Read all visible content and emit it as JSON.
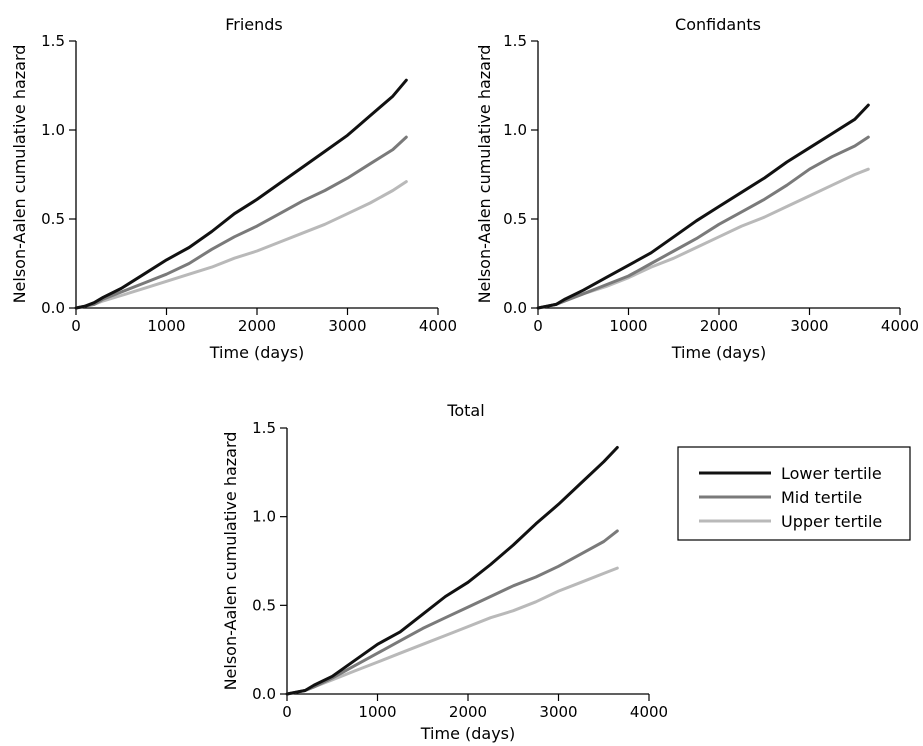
{
  "chart_data": [
    {
      "type": "line",
      "title": "Friends",
      "xlabel": "Time (days)",
      "ylabel": "Nelson-Aalen cumulative hazard",
      "xlim": [
        0,
        4000
      ],
      "ylim": [
        0,
        1.5
      ],
      "xticks": [
        "0",
        "1000",
        "2000",
        "3000",
        "4000"
      ],
      "yticks": [
        "0.0",
        "0.5",
        "1.0",
        "1.5"
      ],
      "series": [
        {
          "name": "Lower tertile",
          "color": "#111111",
          "x": [
            0,
            100,
            200,
            300,
            500,
            750,
            1000,
            1250,
            1500,
            1750,
            2000,
            2250,
            2500,
            2750,
            3000,
            3250,
            3500,
            3650
          ],
          "y": [
            0,
            0.01,
            0.03,
            0.06,
            0.11,
            0.19,
            0.27,
            0.34,
            0.43,
            0.53,
            0.61,
            0.7,
            0.79,
            0.88,
            0.97,
            1.08,
            1.19,
            1.28
          ]
        },
        {
          "name": "Mid tertile",
          "color": "#7a7a7a",
          "x": [
            0,
            100,
            200,
            300,
            500,
            750,
            1000,
            1250,
            1500,
            1750,
            2000,
            2250,
            2500,
            2750,
            3000,
            3250,
            3500,
            3650
          ],
          "y": [
            0,
            0.01,
            0.02,
            0.05,
            0.09,
            0.14,
            0.19,
            0.25,
            0.33,
            0.4,
            0.46,
            0.53,
            0.6,
            0.66,
            0.73,
            0.81,
            0.89,
            0.96
          ]
        },
        {
          "name": "Upper tertile",
          "color": "#b9b9b9",
          "x": [
            0,
            100,
            200,
            300,
            500,
            750,
            1000,
            1250,
            1500,
            1750,
            2000,
            2250,
            2500,
            2750,
            3000,
            3250,
            3500,
            3650
          ],
          "y": [
            0,
            0.01,
            0.02,
            0.04,
            0.07,
            0.11,
            0.15,
            0.19,
            0.23,
            0.28,
            0.32,
            0.37,
            0.42,
            0.47,
            0.53,
            0.59,
            0.66,
            0.71
          ]
        }
      ]
    },
    {
      "type": "line",
      "title": "Confidants",
      "xlabel": "Time (days)",
      "ylabel": "Nelson-Aalen cumulative hazard",
      "xlim": [
        0,
        4000
      ],
      "ylim": [
        0,
        1.5
      ],
      "xticks": [
        "0",
        "1000",
        "2000",
        "3000",
        "4000"
      ],
      "yticks": [
        "0.0",
        "0.5",
        "1.0",
        "1.5"
      ],
      "series": [
        {
          "name": "Lower tertile",
          "color": "#111111",
          "x": [
            0,
            100,
            200,
            300,
            500,
            750,
            1000,
            1250,
            1500,
            1750,
            2000,
            2250,
            2500,
            2750,
            3000,
            3250,
            3500,
            3650
          ],
          "y": [
            0,
            0.01,
            0.02,
            0.05,
            0.1,
            0.17,
            0.24,
            0.31,
            0.4,
            0.49,
            0.57,
            0.65,
            0.73,
            0.82,
            0.9,
            0.98,
            1.06,
            1.14
          ]
        },
        {
          "name": "Mid tertile",
          "color": "#7a7a7a",
          "x": [
            0,
            100,
            200,
            300,
            500,
            750,
            1000,
            1250,
            1500,
            1750,
            2000,
            2250,
            2500,
            2750,
            3000,
            3250,
            3500,
            3650
          ],
          "y": [
            0,
            0.01,
            0.02,
            0.04,
            0.08,
            0.13,
            0.18,
            0.25,
            0.32,
            0.39,
            0.47,
            0.54,
            0.61,
            0.69,
            0.78,
            0.85,
            0.91,
            0.96
          ]
        },
        {
          "name": "Upper tertile",
          "color": "#b9b9b9",
          "x": [
            0,
            100,
            200,
            300,
            500,
            750,
            1000,
            1250,
            1500,
            1750,
            2000,
            2250,
            2500,
            2750,
            3000,
            3250,
            3500,
            3650
          ],
          "y": [
            0,
            0.01,
            0.02,
            0.04,
            0.08,
            0.12,
            0.17,
            0.23,
            0.28,
            0.34,
            0.4,
            0.46,
            0.51,
            0.57,
            0.63,
            0.69,
            0.75,
            0.78
          ]
        }
      ]
    },
    {
      "type": "line",
      "title": "Total",
      "xlabel": "Time (days)",
      "ylabel": "Nelson-Aalen cumulative hazard",
      "xlim": [
        0,
        4000
      ],
      "ylim": [
        0,
        1.5
      ],
      "xticks": [
        "0",
        "1000",
        "2000",
        "3000",
        "4000"
      ],
      "yticks": [
        "0.0",
        "0.5",
        "1.0",
        "1.5"
      ],
      "series": [
        {
          "name": "Lower tertile",
          "color": "#111111",
          "x": [
            0,
            100,
            200,
            300,
            500,
            750,
            1000,
            1250,
            1500,
            1750,
            2000,
            2250,
            2500,
            2750,
            3000,
            3250,
            3500,
            3650
          ],
          "y": [
            0,
            0.01,
            0.02,
            0.05,
            0.1,
            0.19,
            0.28,
            0.35,
            0.45,
            0.55,
            0.63,
            0.73,
            0.84,
            0.96,
            1.07,
            1.19,
            1.31,
            1.39
          ]
        },
        {
          "name": "Mid tertile",
          "color": "#7a7a7a",
          "x": [
            0,
            100,
            200,
            300,
            500,
            750,
            1000,
            1250,
            1500,
            1750,
            2000,
            2250,
            2500,
            2750,
            3000,
            3250,
            3500,
            3650
          ],
          "y": [
            0,
            0.01,
            0.02,
            0.04,
            0.09,
            0.16,
            0.23,
            0.3,
            0.37,
            0.43,
            0.49,
            0.55,
            0.61,
            0.66,
            0.72,
            0.79,
            0.86,
            0.92
          ]
        },
        {
          "name": "Upper tertile",
          "color": "#b9b9b9",
          "x": [
            0,
            100,
            200,
            300,
            500,
            750,
            1000,
            1250,
            1500,
            1750,
            2000,
            2250,
            2500,
            2750,
            3000,
            3250,
            3500,
            3650
          ],
          "y": [
            0,
            0.01,
            0.02,
            0.04,
            0.08,
            0.13,
            0.18,
            0.23,
            0.28,
            0.33,
            0.38,
            0.43,
            0.47,
            0.52,
            0.58,
            0.63,
            0.68,
            0.71
          ]
        }
      ]
    }
  ],
  "legend": {
    "position": "right of bottom panel",
    "entries": [
      {
        "label": "Lower tertile",
        "color": "#111111"
      },
      {
        "label": "Mid tertile",
        "color": "#7a7a7a"
      },
      {
        "label": "Upper tertile",
        "color": "#b9b9b9"
      }
    ]
  }
}
